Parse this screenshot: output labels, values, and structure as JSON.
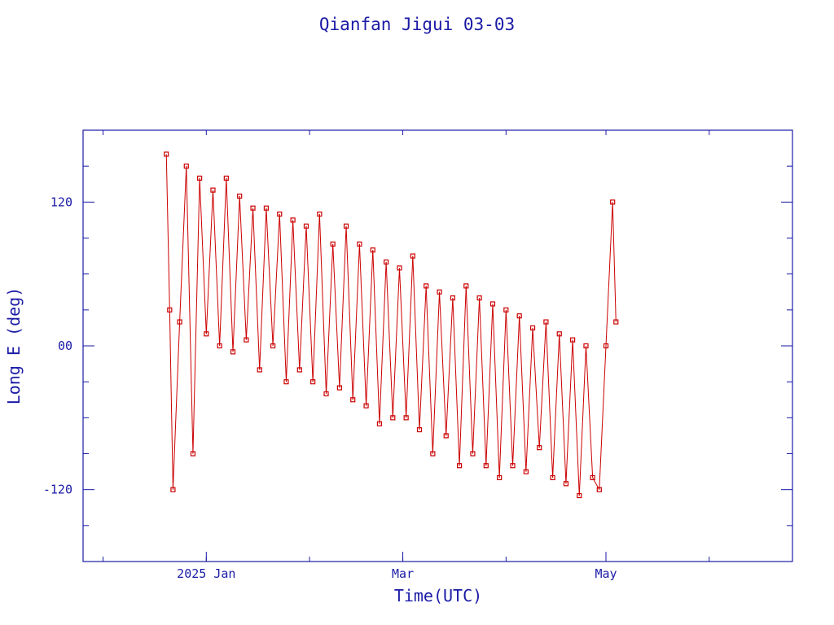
{
  "chart_data": {
    "type": "line",
    "title": "Qianfan Jigui 03-03",
    "xlabel": "Time(UTC)",
    "ylabel": "Long E (deg)",
    "ylim": [
      -180,
      180
    ],
    "xlim": [
      "2024-11-25",
      "2025-06-26"
    ],
    "y_ticks": [
      -120,
      0,
      120
    ],
    "y_tick_labels": [
      "-120",
      "00",
      "120"
    ],
    "x_tick_labels": [
      {
        "date": "2025-01-01",
        "label": "2025 Jan"
      },
      {
        "date": "2025-03-01",
        "label": "Mar"
      },
      {
        "date": "2025-05-01",
        "label": "May"
      }
    ],
    "x_minor_dates": [
      "2024-12-01",
      "2025-01-01",
      "2025-02-01",
      "2025-03-01",
      "2025-04-01",
      "2025-05-01",
      "2025-06-01"
    ],
    "grid": false,
    "colors": {
      "series": "#cc0000",
      "axes": "#1a1aa6",
      "background": "#ffffff"
    },
    "series": [
      {
        "marker": "square",
        "x": [
          "2024-12-20",
          "2024-12-21",
          "2024-12-22",
          "2024-12-24",
          "2024-12-26",
          "2024-12-28",
          "2024-12-30",
          "2025-01-01",
          "2025-01-03",
          "2025-01-05",
          "2025-01-07",
          "2025-01-09",
          "2025-01-11",
          "2025-01-13",
          "2025-01-15",
          "2025-01-17",
          "2025-01-19",
          "2025-01-21",
          "2025-01-23",
          "2025-01-25",
          "2025-01-27",
          "2025-01-29",
          "2025-01-31",
          "2025-02-02",
          "2025-02-04",
          "2025-02-06",
          "2025-02-08",
          "2025-02-10",
          "2025-02-12",
          "2025-02-14",
          "2025-02-16",
          "2025-02-18",
          "2025-02-20",
          "2025-02-22",
          "2025-02-24",
          "2025-02-26",
          "2025-02-28",
          "2025-03-02",
          "2025-03-04",
          "2025-03-06",
          "2025-03-08",
          "2025-03-10",
          "2025-03-12",
          "2025-03-14",
          "2025-03-16",
          "2025-03-18",
          "2025-03-20",
          "2025-03-22",
          "2025-03-24",
          "2025-03-26",
          "2025-03-28",
          "2025-03-30",
          "2025-04-01",
          "2025-04-03",
          "2025-04-05",
          "2025-04-07",
          "2025-04-09",
          "2025-04-11",
          "2025-04-13",
          "2025-04-15",
          "2025-04-17",
          "2025-04-19",
          "2025-04-21",
          "2025-04-23",
          "2025-04-25",
          "2025-04-27",
          "2025-04-29",
          "2025-05-01",
          "2025-05-03",
          "2025-05-04"
        ],
        "y": [
          160,
          30,
          -120,
          20,
          150,
          -90,
          140,
          10,
          130,
          0,
          140,
          -5,
          125,
          5,
          115,
          -20,
          115,
          0,
          110,
          -30,
          105,
          -20,
          100,
          -30,
          110,
          -40,
          85,
          -35,
          100,
          -45,
          85,
          -50,
          80,
          -65,
          70,
          -60,
          65,
          -60,
          75,
          -70,
          50,
          -90,
          45,
          -75,
          40,
          -100,
          50,
          -90,
          40,
          -100,
          35,
          -110,
          30,
          -100,
          25,
          -105,
          15,
          -85,
          20,
          -110,
          10,
          -115,
          5,
          -125,
          0,
          -110,
          -120,
          0,
          120,
          20
        ]
      }
    ]
  }
}
